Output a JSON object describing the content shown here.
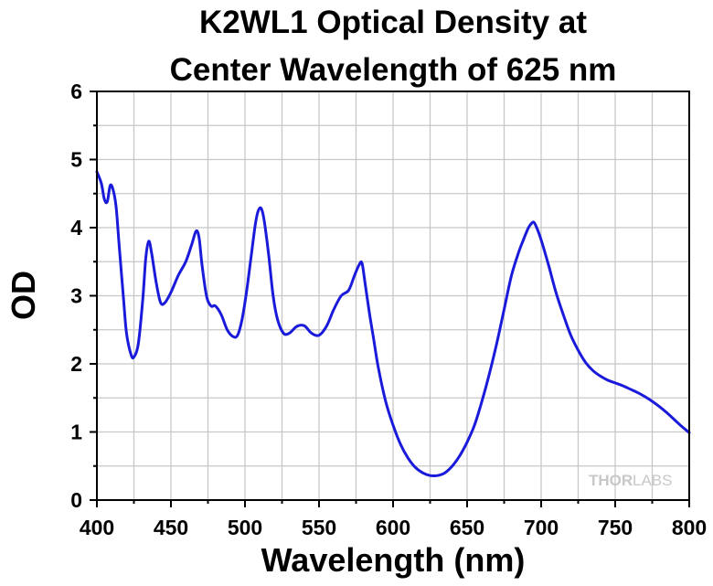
{
  "chart_data": {
    "type": "line",
    "title_line1": "K2WL1 Optical Density at",
    "title_line2": "Center Wavelength of 625 nm",
    "xlabel": "Wavelength (nm)",
    "ylabel": "OD",
    "xlim": [
      400,
      800
    ],
    "ylim": [
      0,
      6
    ],
    "xticks": [
      "400",
      "450",
      "500",
      "550",
      "600",
      "650",
      "700",
      "750",
      "800"
    ],
    "yticks": [
      "0",
      "1",
      "2",
      "3",
      "4",
      "5",
      "6"
    ],
    "grid": true,
    "line_color": "#1a1adb",
    "series": [
      {
        "x": [
          400,
          403,
          405,
          407,
          409,
          411,
          413,
          415,
          418,
          420,
          423,
          425,
          428,
          431,
          433,
          435,
          437,
          440,
          443,
          446,
          450,
          455,
          460,
          464,
          467,
          469,
          471,
          474,
          477,
          480,
          484,
          488,
          492,
          495,
          498,
          501,
          504,
          507,
          509,
          511,
          513,
          516,
          519,
          522,
          526,
          530,
          535,
          540,
          545,
          550,
          555,
          560,
          565,
          570,
          574,
          577,
          579,
          581,
          584,
          587,
          590,
          595,
          600,
          605,
          610,
          615,
          620,
          625,
          630,
          635,
          640,
          645,
          650,
          655,
          660,
          665,
          670,
          675,
          680,
          685,
          688,
          691,
          693,
          695,
          697,
          700,
          705,
          710,
          715,
          720,
          725,
          730,
          735,
          740,
          745,
          750,
          755,
          760,
          765,
          770,
          775,
          780,
          785,
          790,
          795,
          800
        ],
        "y": [
          4.82,
          4.65,
          4.42,
          4.38,
          4.62,
          4.55,
          4.3,
          3.75,
          2.95,
          2.45,
          2.14,
          2.1,
          2.3,
          2.95,
          3.55,
          3.8,
          3.62,
          3.2,
          2.9,
          2.9,
          3.05,
          3.3,
          3.5,
          3.75,
          3.95,
          3.85,
          3.45,
          3.0,
          2.85,
          2.85,
          2.72,
          2.5,
          2.4,
          2.42,
          2.65,
          3.05,
          3.55,
          4.05,
          4.25,
          4.28,
          4.1,
          3.6,
          3.0,
          2.65,
          2.45,
          2.45,
          2.55,
          2.56,
          2.45,
          2.42,
          2.55,
          2.8,
          3.0,
          3.08,
          3.3,
          3.45,
          3.48,
          3.2,
          2.75,
          2.35,
          1.95,
          1.45,
          1.1,
          0.82,
          0.62,
          0.48,
          0.4,
          0.36,
          0.36,
          0.4,
          0.5,
          0.65,
          0.85,
          1.1,
          1.45,
          1.85,
          2.3,
          2.8,
          3.3,
          3.65,
          3.82,
          3.98,
          4.05,
          4.08,
          4.0,
          3.82,
          3.45,
          3.05,
          2.72,
          2.42,
          2.2,
          2.02,
          1.9,
          1.82,
          1.76,
          1.72,
          1.68,
          1.63,
          1.58,
          1.52,
          1.45,
          1.37,
          1.28,
          1.18,
          1.08,
          0.99
        ]
      }
    ]
  },
  "watermark": {
    "part1": "THOR",
    "part2": "LABS"
  }
}
